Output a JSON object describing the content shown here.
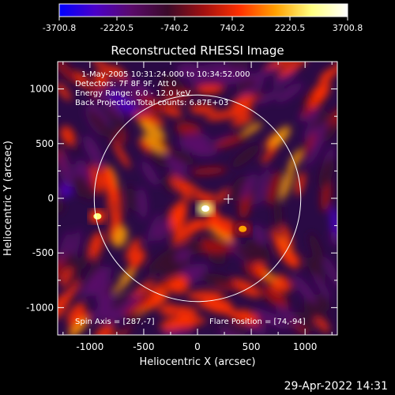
{
  "chart_data": {
    "type": "heatmap",
    "title": "Reconstructed RHESSI Image",
    "xlabel": "Heliocentric X (arcsec)",
    "ylabel": "Heliocentric Y (arcsec)",
    "xlim": [
      -1300,
      1300
    ],
    "ylim": [
      -1250,
      1250
    ],
    "x_ticks": [
      -1000,
      -500,
      0,
      500,
      1000
    ],
    "y_ticks": [
      -1000,
      -500,
      0,
      500,
      1000
    ],
    "colorbar": {
      "min": -3700.8,
      "max": 3700.8,
      "tick_values": [
        -3700.8,
        -2220.5,
        -740.2,
        740.2,
        2220.5,
        3700.8
      ],
      "tick_labels": [
        "-3700.8",
        "-2220.5",
        "-740.2",
        "740.2",
        "2220.5",
        "3700.8"
      ],
      "colors": [
        "#0000ff",
        "#4b00c8",
        "#5a0a6a",
        "#3a0a2a",
        "#a01010",
        "#ff3000",
        "#ffa000",
        "#ffff80",
        "#ffffff"
      ]
    },
    "annotations": {
      "time_range": "1-May-2005 10:31:24.000 to 10:34:52.000",
      "detectors": "Detectors: 7F 8F 9F, Att 0",
      "energy": "Energy Range: 6.0 - 12.0 keV",
      "method": "Back Projection",
      "counts": "Total counts: 6.87E+03",
      "spin_axis": "Spin Axis = [287,-7]",
      "flare_position": "Flare Position = [74,-94]"
    },
    "solar_disk": {
      "center": [
        0,
        0
      ],
      "radius": 960
    },
    "spin_axis_marker": [
      287,
      -7
    ],
    "bright_sources": [
      {
        "x": 74,
        "y": -94,
        "intensity": 3700
      },
      {
        "x": -930,
        "y": -165,
        "intensity": 2400
      },
      {
        "x": 420,
        "y": -280,
        "intensity": 1500
      }
    ],
    "grid": false
  },
  "footer": {
    "timestamp": "29-Apr-2022 14:31"
  }
}
